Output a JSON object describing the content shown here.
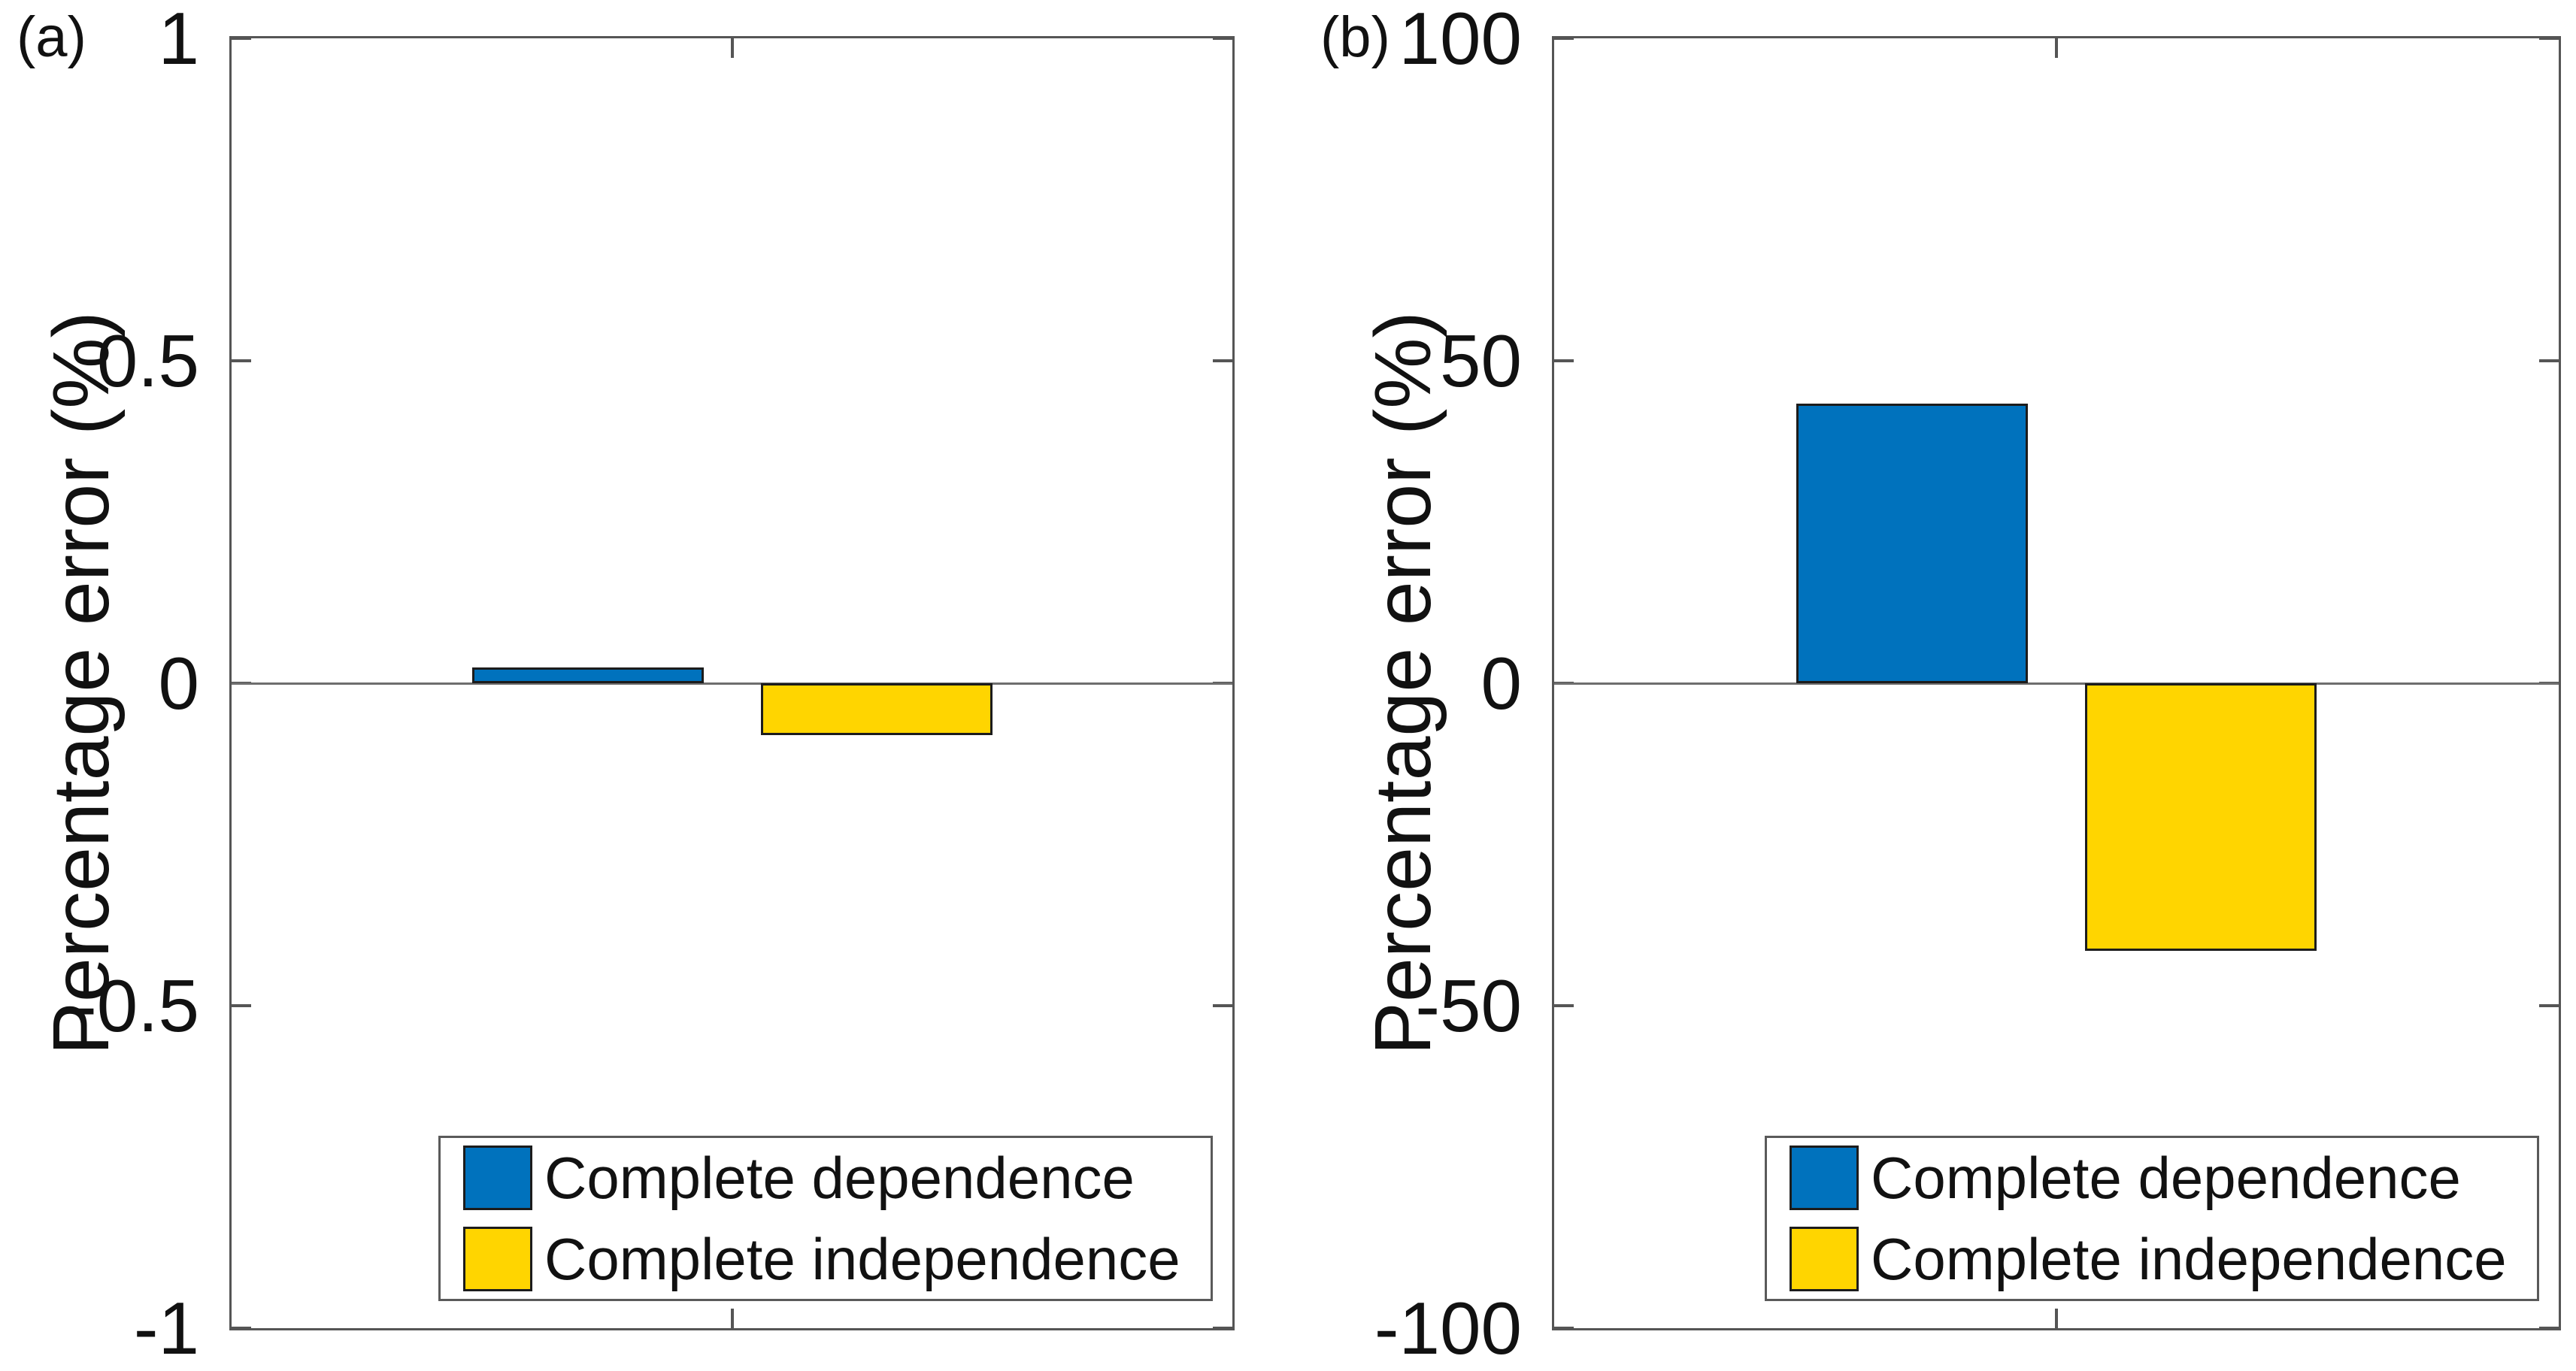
{
  "figure": {
    "background": "#ffffff",
    "axes_color": "#555555",
    "bar_edge_color": "#1c1c1c"
  },
  "chart_data": [
    {
      "type": "bar",
      "panel_label": "(a)",
      "title": "",
      "xlabel": "",
      "ylabel": "Percentage error (%)",
      "categories": [
        ""
      ],
      "series": [
        {
          "name": "Complete dependence",
          "color": "#0072BD",
          "values": [
            0.024
          ]
        },
        {
          "name": "Complete independence",
          "color": "#FFD500",
          "values": [
            -0.08
          ]
        }
      ],
      "ylim": [
        -1,
        1
      ],
      "yticks": [
        1,
        0.5,
        0,
        -0.5,
        -1
      ],
      "ytick_labels": [
        "1",
        "0.5",
        "0",
        "-0.5",
        "-1"
      ],
      "grid": false,
      "box": true,
      "legend_position": "southeast"
    },
    {
      "type": "bar",
      "panel_label": "(b)",
      "title": "",
      "xlabel": "",
      "ylabel": "Percentage error (%)",
      "categories": [
        ""
      ],
      "series": [
        {
          "name": "Complete dependence",
          "color": "#0072BD",
          "values": [
            43.3
          ]
        },
        {
          "name": "Complete independence",
          "color": "#FFD500",
          "values": [
            -41.5
          ]
        }
      ],
      "ylim": [
        -100,
        100
      ],
      "yticks": [
        100,
        50,
        0,
        -50,
        -100
      ],
      "ytick_labels": [
        "100",
        "50",
        "0",
        "-50",
        "-100"
      ],
      "grid": false,
      "box": true,
      "legend_position": "southeast"
    }
  ]
}
